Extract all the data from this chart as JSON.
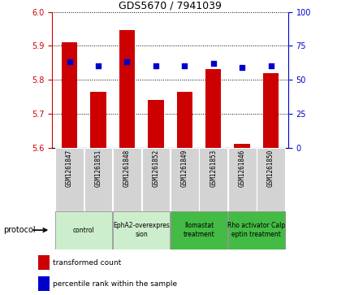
{
  "title": "GDS5670 / 7941039",
  "samples": [
    "GSM1261847",
    "GSM1261851",
    "GSM1261848",
    "GSM1261852",
    "GSM1261849",
    "GSM1261853",
    "GSM1261846",
    "GSM1261850"
  ],
  "transformed_counts": [
    5.91,
    5.765,
    5.945,
    5.74,
    5.765,
    5.83,
    5.61,
    5.82
  ],
  "percentile_ranks": [
    63,
    60,
    63,
    60,
    60,
    62,
    59,
    60
  ],
  "ylim_left": [
    5.6,
    6.0
  ],
  "ylim_right": [
    0,
    100
  ],
  "yticks_left": [
    5.6,
    5.7,
    5.8,
    5.9,
    6.0
  ],
  "yticks_right": [
    0,
    25,
    50,
    75,
    100
  ],
  "bar_color": "#cc0000",
  "dot_color": "#0000cc",
  "left_tick_color": "#cc0000",
  "right_tick_color": "#0000cc",
  "bar_width": 0.55,
  "sample_bg_color": "#d3d3d3",
  "protocol_groups": [
    {
      "start": 0,
      "end": 1,
      "label": "control",
      "color": "#cceecc",
      "text_color": "black"
    },
    {
      "start": 2,
      "end": 3,
      "label": "EphA2-overexpres\nsion",
      "color": "#cceecc",
      "text_color": "black"
    },
    {
      "start": 4,
      "end": 5,
      "label": "Ilomastat\ntreatment",
      "color": "#44bb44",
      "text_color": "black"
    },
    {
      "start": 6,
      "end": 7,
      "label": "Rho activator Calp\neptin treatment",
      "color": "#44bb44",
      "text_color": "black"
    }
  ]
}
